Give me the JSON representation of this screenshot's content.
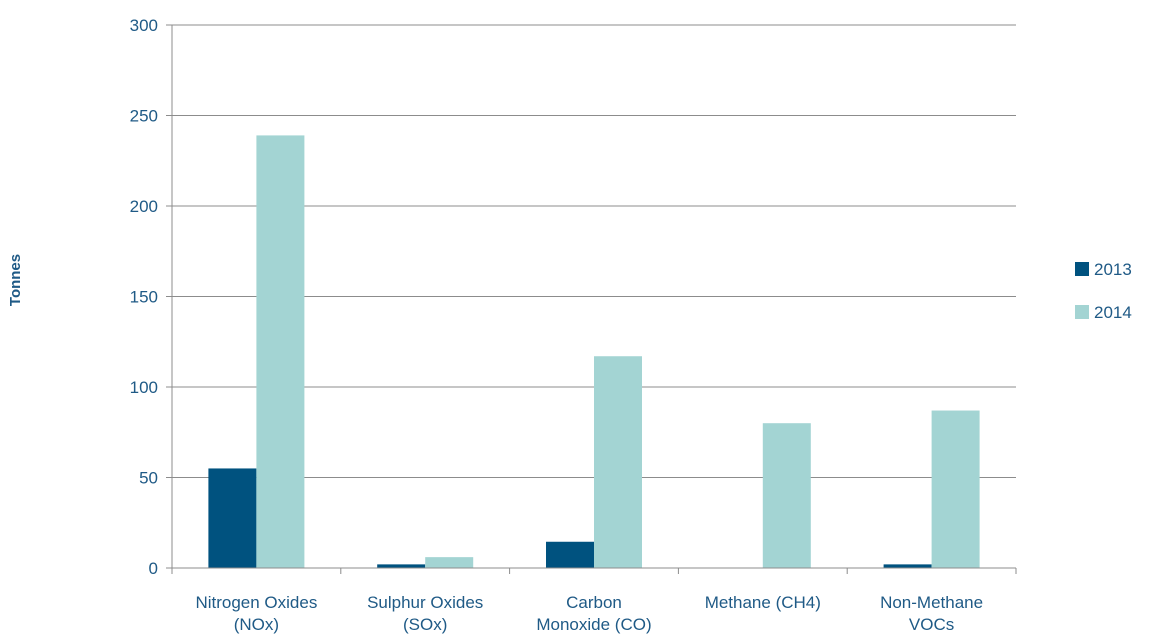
{
  "chart_data": {
    "type": "bar",
    "categories": [
      [
        "Nitrogen Oxides",
        "(NOx)"
      ],
      [
        "Sulphur Oxides",
        "(SOx)"
      ],
      [
        "Carbon",
        "Monoxide (CO)"
      ],
      [
        "Methane (CH4)"
      ],
      [
        "Non-Methane",
        "VOCs"
      ]
    ],
    "series": [
      {
        "name": "2013",
        "values": [
          55,
          2,
          14.5,
          0,
          2
        ],
        "color": "#00527f"
      },
      {
        "name": "2014",
        "values": [
          239,
          6,
          117,
          80,
          87
        ],
        "color": "#a3d4d3"
      }
    ],
    "title": "",
    "xlabel": "",
    "ylabel": "Tonnes",
    "ylim": [
      0,
      300
    ],
    "yticks": [
      0,
      50,
      100,
      150,
      200,
      250,
      300
    ],
    "grid": true,
    "legend": "right"
  }
}
